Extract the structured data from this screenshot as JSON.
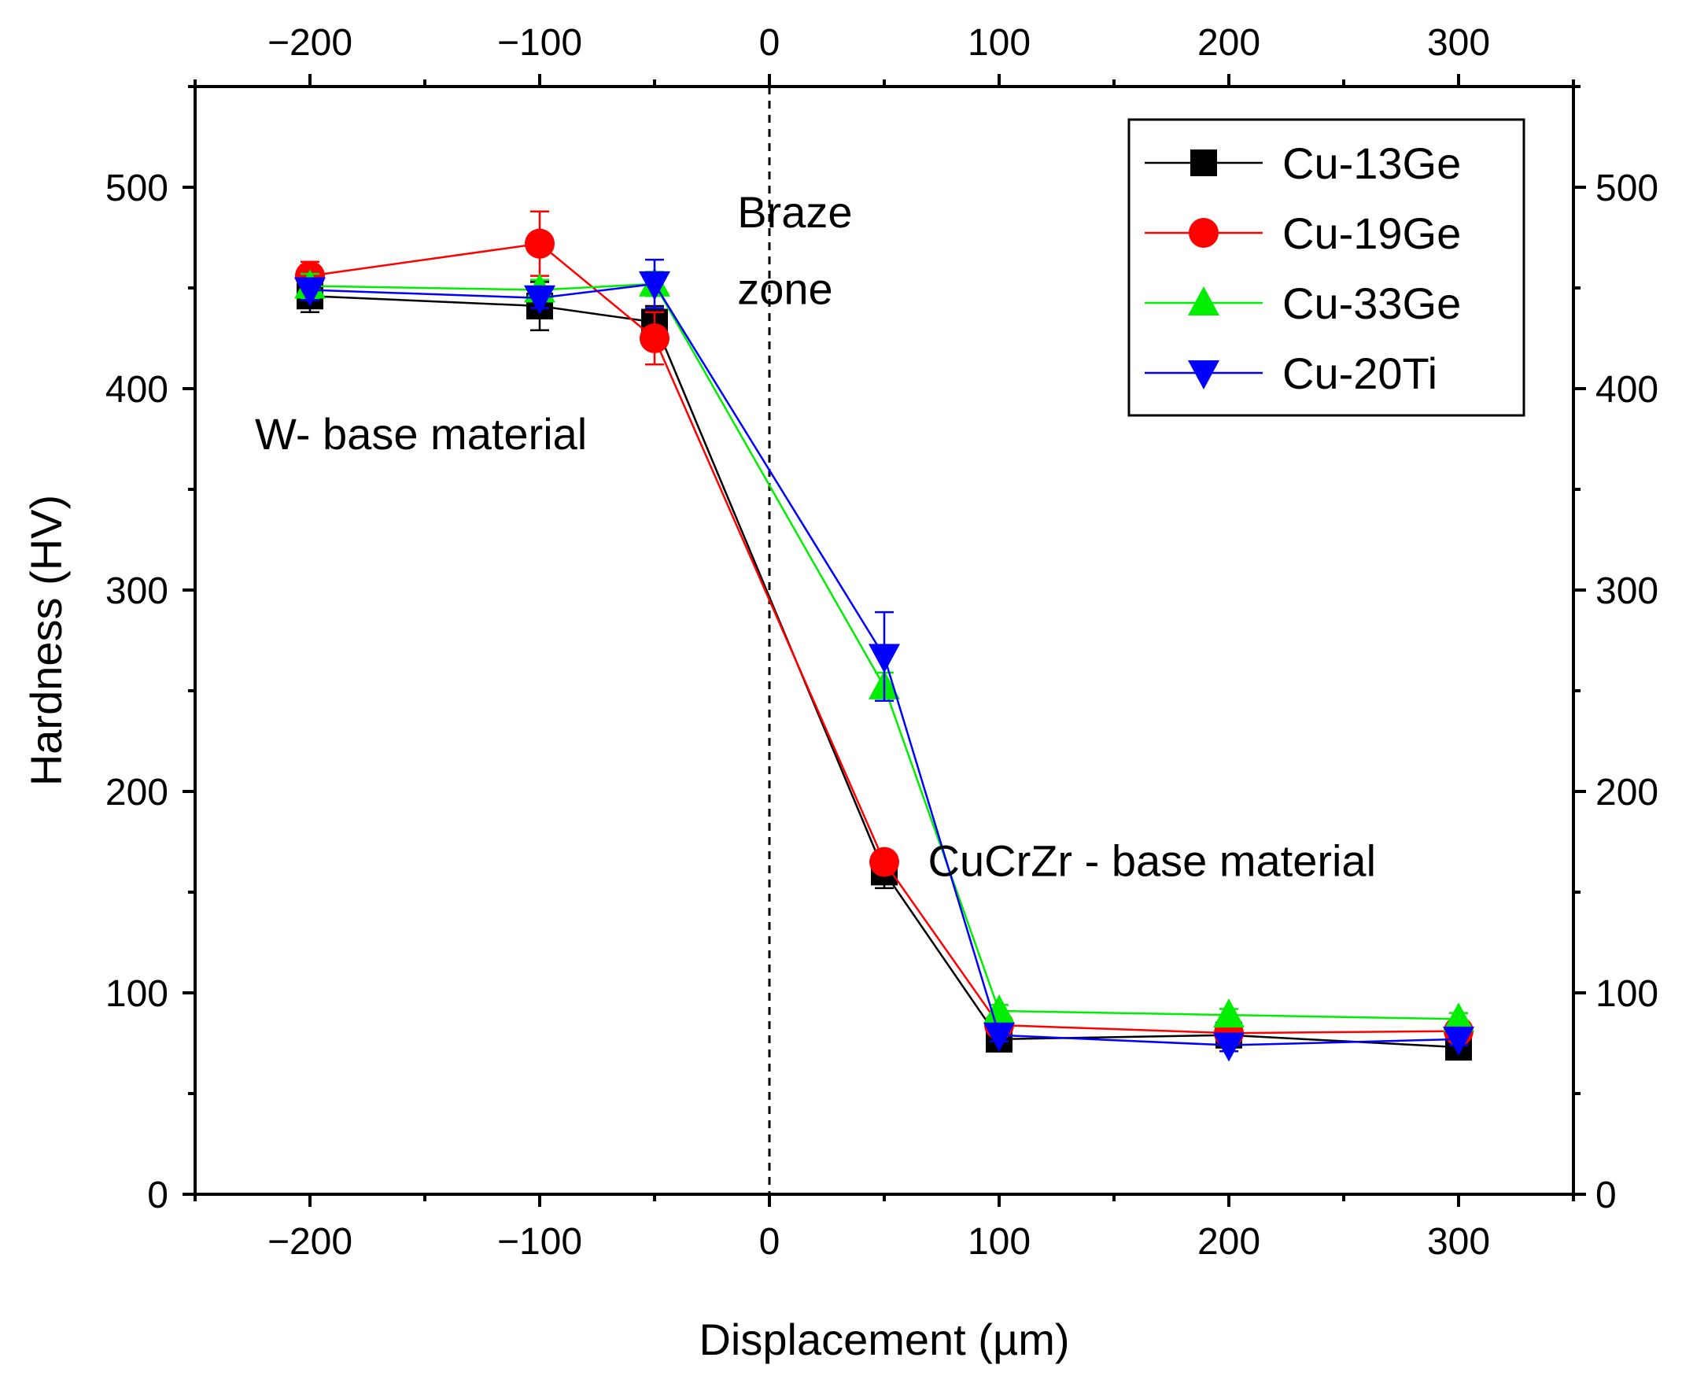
{
  "chart_data": {
    "type": "line",
    "title": "",
    "xlabel": "Displacement (µm)",
    "ylabel": "Hardness (HV)",
    "xlim": [
      -250,
      350
    ],
    "ylim": [
      0,
      550
    ],
    "x_ticks": [
      -200,
      -100,
      0,
      100,
      200,
      300
    ],
    "x_tick_labels": [
      "−200",
      "−100",
      "0",
      "100",
      "200",
      "300"
    ],
    "y_ticks": [
      0,
      100,
      200,
      300,
      400,
      500
    ],
    "y_tick_labels": [
      "0",
      "100",
      "200",
      "300",
      "400",
      "500"
    ],
    "grid": false,
    "mirror_axes": true,
    "legend_position": "top-right",
    "reference_line": {
      "x": 0,
      "style": "dashed"
    },
    "annotations": [
      {
        "text": "W- base material",
        "x": -200,
        "y": 370
      },
      {
        "text": "Braze",
        "x": 10,
        "y": 480
      },
      {
        "text": "zone",
        "x": 10,
        "y": 442
      },
      {
        "text": "CuCrZr - base material",
        "x": 93,
        "y": 158
      }
    ],
    "series": [
      {
        "name": "Cu-13Ge",
        "color": "#000000",
        "marker": "square",
        "x": [
          -200,
          -100,
          -50,
          50,
          100,
          200,
          300
        ],
        "y": [
          446,
          441,
          433,
          160,
          77,
          79,
          73
        ],
        "yerr": [
          8,
          12,
          8,
          8,
          3,
          3,
          3
        ]
      },
      {
        "name": "Cu-19Ge",
        "color": "#ff0000",
        "marker": "circle",
        "x": [
          -200,
          -100,
          -50,
          50,
          100,
          200,
          300
        ],
        "y": [
          456,
          472,
          425,
          165,
          84,
          80,
          81
        ],
        "yerr": [
          7,
          16,
          13,
          5,
          3,
          3,
          3
        ]
      },
      {
        "name": "Cu-33Ge",
        "color": "#00ee00",
        "marker": "triangle-up",
        "x": [
          -200,
          -100,
          -50,
          50,
          100,
          200,
          300
        ],
        "y": [
          451,
          449,
          452,
          252,
          91,
          89,
          87
        ],
        "yerr": [
          6,
          5,
          6,
          7,
          3,
          3,
          3
        ]
      },
      {
        "name": "Cu-20Ti",
        "color": "#0000ff",
        "marker": "triangle-down",
        "x": [
          -200,
          -100,
          -50,
          50,
          100,
          200,
          300
        ],
        "y": [
          449,
          445,
          452,
          267,
          79,
          74,
          77
        ],
        "yerr": [
          5,
          5,
          12,
          22,
          3,
          3,
          3
        ]
      }
    ]
  }
}
